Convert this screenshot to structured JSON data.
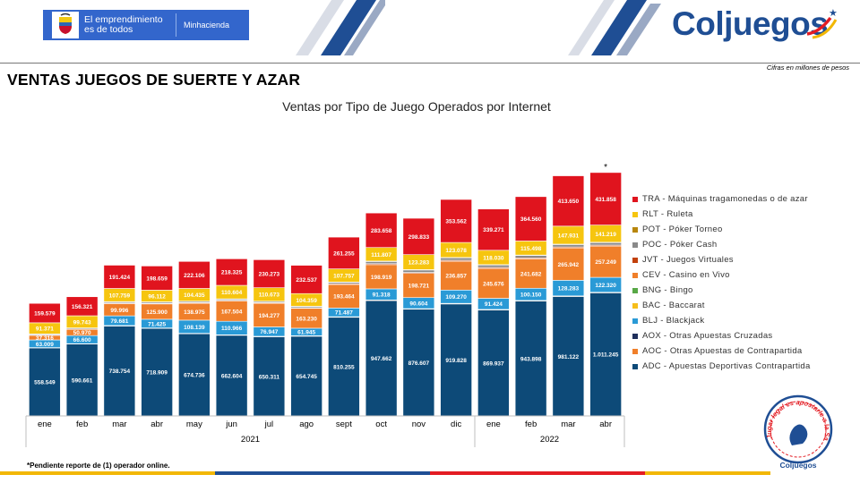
{
  "header": {
    "gov_banner_text": "El emprendimiento es de todos",
    "gov_ministry": "Minhacienda",
    "logo_text": "Coljuegos",
    "logo_star": "★"
  },
  "page": {
    "title": "VENTAS JUEGOS DE SUERTE Y AZAR",
    "units_note": "Cifras en millones de pesos",
    "footnote": "*Pendiente reporte de (1) operador online.",
    "seal_text_top": "Jugar legal es apostarle a la Salud",
    "seal_brand": "Coljuegos"
  },
  "colors": {
    "brand_blue": "#1f4e94",
    "gov_blue": "#3366cc",
    "accent_red": "#e31c23",
    "accent_yellow": "#f2b705"
  },
  "chart_data": {
    "type": "bar",
    "stacked": true,
    "title": "Ventas por Tipo de Juego Operados por Internet",
    "xlabel": "",
    "ylabel": "",
    "units": "millones de pesos",
    "categories": [
      "ene",
      "feb",
      "mar",
      "abr",
      "may",
      "jun",
      "jul",
      "ago",
      "sept",
      "oct",
      "nov",
      "dic",
      "ene",
      "feb",
      "mar",
      "abr"
    ],
    "year_groups": [
      {
        "label": "2021",
        "start": 0,
        "end": 11
      },
      {
        "label": "2022",
        "start": 12,
        "end": 15
      }
    ],
    "annotations": [
      {
        "category_index": 15,
        "text": "*"
      }
    ],
    "ylim": [
      0,
      2000000
    ],
    "grid": false,
    "legend_position": "right",
    "series": [
      {
        "code": "ADC",
        "name": "ADC - Apuestas Deportivas Contrapartida",
        "color": "#0d4a78",
        "labeled": true,
        "values": [
          558549,
          590661,
          738754,
          718909,
          674736,
          662604,
          650311,
          654745,
          810255,
          947662,
          876607,
          919828,
          869937,
          943898,
          981122,
          1011245
        ]
      },
      {
        "code": "AOC",
        "name": "AOC - Otras Apuestas de Contrapartida",
        "color": "#f07f2a",
        "labeled": false,
        "values": [
          3000,
          3000,
          4000,
          4000,
          4000,
          4000,
          4000,
          4000,
          5000,
          5000,
          5000,
          5000,
          5000,
          5000,
          5000,
          5000
        ]
      },
      {
        "code": "AOX",
        "name": "AOX - Otras Apuestas Cruzadas",
        "color": "#1f2f5c",
        "labeled": false,
        "values": [
          0,
          0,
          0,
          0,
          0,
          0,
          0,
          0,
          0,
          0,
          0,
          0,
          0,
          0,
          0,
          0
        ]
      },
      {
        "code": "BAC",
        "name": "BAC - Baccarat",
        "color": "#f6be1a",
        "labeled": false,
        "values": [
          0,
          0,
          0,
          0,
          0,
          0,
          0,
          0,
          0,
          0,
          0,
          0,
          0,
          0,
          0,
          0
        ]
      },
      {
        "code": "BLJ",
        "name": "BLJ - Blackjack",
        "color": "#2a9ad6",
        "labeled": true,
        "values": [
          63009,
          66600,
          79681,
          71425,
          108139,
          110966,
          76947,
          61945,
          71487,
          91318,
          90604,
          109270,
          91424,
          100150,
          128283,
          122320
        ]
      },
      {
        "code": "BNG",
        "name": "BNG - Bingo",
        "color": "#58a846",
        "labeled": false,
        "values": [
          0,
          0,
          0,
          0,
          0,
          0,
          0,
          0,
          0,
          0,
          0,
          0,
          0,
          0,
          0,
          0
        ]
      },
      {
        "code": "CEV",
        "name": "CEV - Casino en Vivo",
        "color": "#f07f2a",
        "labeled": true,
        "values": [
          37316,
          50970,
          99996,
          125900,
          138975,
          167504,
          194277,
          163230,
          193464,
          198919,
          198721,
          236857,
          245676,
          241682,
          265942,
          257249
        ]
      },
      {
        "code": "JVT",
        "name": "JVT - Juegos Virtuales",
        "color": "#c2410c",
        "labeled": false,
        "values": [
          3000,
          3000,
          5000,
          5000,
          5000,
          5000,
          5000,
          5000,
          6000,
          8000,
          8000,
          8000,
          8000,
          8000,
          8000,
          8000
        ]
      },
      {
        "code": "POC",
        "name": "POC - Póker Cash",
        "color": "#8a8a8a",
        "labeled": false,
        "values": [
          8000,
          8000,
          10000,
          10000,
          10000,
          10000,
          10000,
          10000,
          12000,
          18000,
          20000,
          20000,
          20000,
          20000,
          20000,
          20000
        ]
      },
      {
        "code": "POT",
        "name": "POT - Póker Torneo",
        "color": "#b8860b",
        "labeled": false,
        "values": [
          1000,
          1000,
          2000,
          2000,
          2000,
          2000,
          2000,
          2000,
          2000,
          3000,
          3000,
          3000,
          3000,
          3000,
          3000,
          3000
        ]
      },
      {
        "code": "RLT",
        "name": "RLT - Ruleta",
        "color": "#f6c50f",
        "labeled": true,
        "values": [
          91371,
          99743,
          107759,
          96112,
          104435,
          110604,
          110673,
          104359,
          107757,
          111807,
          123283,
          123078,
          118030,
          115498,
          147931,
          141219
        ]
      },
      {
        "code": "TRA",
        "name": "TRA - Máquinas tragamonedas o de azar",
        "color": "#e0141e",
        "labeled": true,
        "values": [
          159579,
          156321,
          191424,
          198659,
          222106,
          218325,
          230273,
          232537,
          261255,
          283658,
          298833,
          353562,
          339271,
          364560,
          413650,
          431858
        ]
      }
    ],
    "value_labels": {
      "ADC": [
        "558.549",
        "590.661",
        "738.754",
        "718.909",
        "674.736",
        "662.604",
        "650.311",
        "654.745",
        "810.255",
        "947.662",
        "876.607",
        "919.828",
        "869.937",
        "943.898",
        "981.122",
        "1.011.245"
      ],
      "BLJ": [
        "63.009",
        "66.600",
        "79.681",
        "71.425",
        "108.139",
        "110.966",
        "76.947",
        "61.945",
        "71.487",
        "91.318",
        "90.604",
        "109.270",
        "91.424",
        "100.150",
        "128.283",
        "122.320"
      ],
      "CEV": [
        "37.316",
        "50.970",
        "99.996",
        "125.900",
        "138.975",
        "167.504",
        "194.277",
        "163.230",
        "193.464",
        "198.919",
        "198.721",
        "236.857",
        "245.676",
        "241.682",
        "265.942",
        "257.249"
      ],
      "RLT": [
        "91.371",
        "99.743",
        "107.759",
        "96.112",
        "104.435",
        "110.604",
        "110.673",
        "104.359",
        "107.757",
        "111.807",
        "123.283",
        "123.078",
        "118.030",
        "115.498",
        "147.931",
        "141.219"
      ],
      "TRA": [
        "159.579",
        "156.321",
        "191.424",
        "198.659",
        "222.106",
        "218.325",
        "230.273",
        "232.537",
        "261.255",
        "283.658",
        "298.833",
        "353.562",
        "339.271",
        "364.560",
        "413.650",
        "431.858"
      ]
    },
    "legend_order": [
      "TRA",
      "RLT",
      "POT",
      "POC",
      "JVT",
      "CEV",
      "BNG",
      "BAC",
      "BLJ",
      "AOX",
      "AOC",
      "ADC"
    ]
  }
}
